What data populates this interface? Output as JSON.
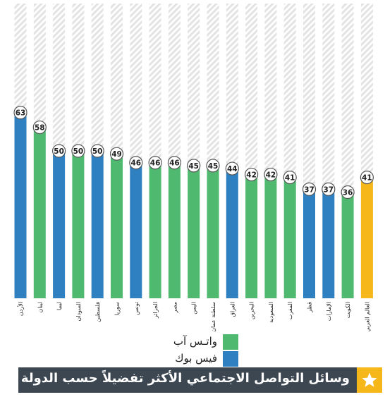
{
  "chart_data": {
    "type": "bar",
    "title": "وسائل التواصل الاجتماعي الأكثر تفضيلاً حسب الدولة",
    "ylim": [
      0,
      100
    ],
    "categories": [
      "الأردن",
      "لبنان",
      "ليبيا",
      "السودان",
      "فلسطين",
      "سوريا",
      "تونس",
      "الجزائر",
      "مصر",
      "اليمن",
      "سلطنة عمان",
      "العراق",
      "البحرين",
      "السعودية",
      "المغرب",
      "قطر",
      "الإمارات",
      "الكويت",
      "العالم العربي"
    ],
    "values": [
      63,
      58,
      50,
      50,
      50,
      49,
      46,
      46,
      46,
      45,
      45,
      44,
      42,
      42,
      41,
      37,
      37,
      36,
      41
    ],
    "platform": [
      "facebook",
      "whatsapp",
      "facebook",
      "whatsapp",
      "facebook",
      "whatsapp",
      "facebook",
      "whatsapp",
      "whatsapp",
      "whatsapp",
      "whatsapp",
      "facebook",
      "whatsapp",
      "whatsapp",
      "whatsapp",
      "facebook",
      "facebook",
      "whatsapp",
      "arab-world"
    ],
    "legend": [
      {
        "key": "whatsapp",
        "label": "واتـس آب",
        "color": "#4fba6f"
      },
      {
        "key": "facebook",
        "label": "فيس بوك",
        "color": "#2f80c1"
      }
    ],
    "colors": {
      "whatsapp": "#4fba6f",
      "facebook": "#2f80c1",
      "arab-world": "#f5b719",
      "background-hatch": "#e3e3e3"
    }
  }
}
